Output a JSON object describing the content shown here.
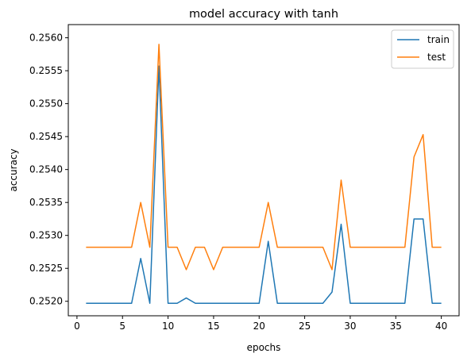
{
  "chart_data": {
    "type": "line",
    "title": "model accuracy with tanh",
    "xlabel": "epochs",
    "ylabel": "accuracy",
    "xlim": [
      -0.95,
      41.95
    ],
    "ylim": [
      0.25178,
      0.2562
    ],
    "xticks": [
      0,
      5,
      10,
      15,
      20,
      25,
      30,
      35,
      40
    ],
    "xtick_labels": [
      "0",
      "5",
      "10",
      "15",
      "20",
      "25",
      "30",
      "35",
      "40"
    ],
    "yticks": [
      0.252,
      0.2525,
      0.253,
      0.2535,
      0.254,
      0.2545,
      0.255,
      0.2555,
      0.256
    ],
    "ytick_labels": [
      "0.2520",
      "0.2525",
      "0.2530",
      "0.2535",
      "0.2540",
      "0.2545",
      "0.2550",
      "0.2555",
      "0.2560"
    ],
    "grid": false,
    "legend_position": "top-right",
    "x": [
      1,
      2,
      3,
      4,
      5,
      6,
      7,
      8,
      9,
      10,
      11,
      12,
      13,
      14,
      15,
      16,
      17,
      18,
      19,
      20,
      21,
      22,
      23,
      24,
      25,
      26,
      27,
      28,
      29,
      30,
      31,
      32,
      33,
      34,
      35,
      36,
      37,
      38,
      39,
      40
    ],
    "series": [
      {
        "name": "train",
        "color": "#1f77b4",
        "values": [
          0.25197,
          0.25197,
          0.25197,
          0.25197,
          0.25197,
          0.25197,
          0.25265,
          0.25197,
          0.25557,
          0.25197,
          0.25197,
          0.25205,
          0.25197,
          0.25197,
          0.25197,
          0.25197,
          0.25197,
          0.25197,
          0.25197,
          0.25197,
          0.25291,
          0.25197,
          0.25197,
          0.25197,
          0.25197,
          0.25197,
          0.25197,
          0.25214,
          0.25317,
          0.25197,
          0.25197,
          0.25197,
          0.25197,
          0.25197,
          0.25197,
          0.25197,
          0.25325,
          0.25325,
          0.25197,
          0.25197
        ]
      },
      {
        "name": "test",
        "color": "#ff7f0e",
        "values": [
          0.25282,
          0.25282,
          0.25282,
          0.25282,
          0.25282,
          0.25282,
          0.2535,
          0.25282,
          0.2559,
          0.25282,
          0.25282,
          0.25248,
          0.25282,
          0.25282,
          0.25248,
          0.25282,
          0.25282,
          0.25282,
          0.25282,
          0.25282,
          0.2535,
          0.25282,
          0.25282,
          0.25282,
          0.25282,
          0.25282,
          0.25282,
          0.25248,
          0.25384,
          0.25282,
          0.25282,
          0.25282,
          0.25282,
          0.25282,
          0.25282,
          0.25282,
          0.25419,
          0.25453,
          0.25282,
          0.25282
        ]
      }
    ]
  }
}
